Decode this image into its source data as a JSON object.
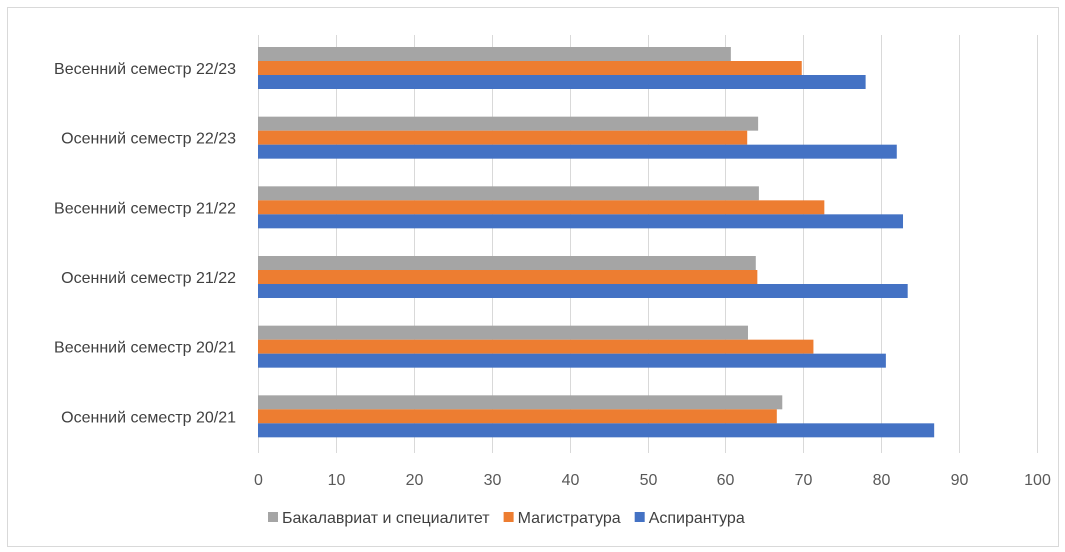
{
  "chart_data": {
    "type": "bar",
    "orientation": "horizontal",
    "categories": [
      "Весенний семестр 22/23",
      "Осенний семестр  22/23",
      "Весенний семестр 21/22",
      "Осенний семестр  21/22",
      "Весенний семестр 20/21",
      "Осенний семестр 20/21"
    ],
    "series": [
      {
        "name": "Бакалавриат и специалитет",
        "color": "#a5a5a5",
        "values": [
          60.7,
          64.2,
          64.3,
          63.9,
          62.9,
          67.3
        ]
      },
      {
        "name": "Магистратура",
        "color": "#ed7d31",
        "values": [
          69.8,
          62.8,
          72.7,
          64.1,
          71.3,
          66.6
        ]
      },
      {
        "name": "Аспирантура",
        "color": "#4472c4",
        "values": [
          78.0,
          82.0,
          82.8,
          83.4,
          80.6,
          86.8
        ]
      }
    ],
    "xlim": [
      0,
      100
    ],
    "x_ticks": [
      "0",
      "10",
      "20",
      "30",
      "40",
      "50",
      "60",
      "70",
      "80",
      "90",
      "100"
    ],
    "grid": true,
    "legend_position": "bottom"
  }
}
